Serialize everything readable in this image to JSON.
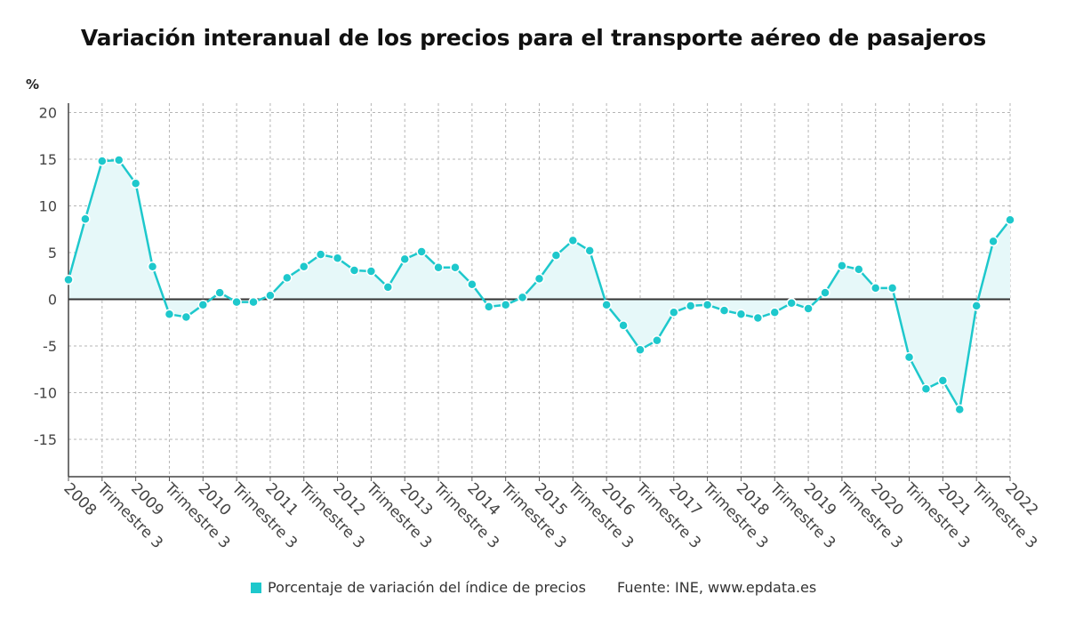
{
  "title": "Variación interanual de los precios para el transporte aéreo de pasajeros",
  "legend_label": "Porcentaje de variación del índice de precios",
  "source": "Fuente: INE, www.epdata.es",
  "colors": {
    "series": "#1ec8cc",
    "area": "#e6f8f9",
    "grid": "#b5b5b5",
    "zero_line": "#333333",
    "axis_text": "#444444"
  },
  "chart_data": {
    "type": "line",
    "title": "Variación interanual de los precios para el transporte aéreo de pasajeros",
    "ylabel": "%",
    "xlabel": "",
    "ylim": [
      -19,
      21
    ],
    "yticks": [
      20,
      15,
      10,
      5,
      0,
      -5,
      -10,
      -15
    ],
    "x_tick_labels": [
      "2008",
      "Trimestre 3",
      "2009",
      "Trimestre 3",
      "2010",
      "Trimestre 3",
      "2011",
      "Trimestre 3",
      "2012",
      "Trimestre 3",
      "2013",
      "Trimestre 3",
      "2014",
      "Trimestre 3",
      "2015",
      "Trimestre 3",
      "2016",
      "Trimestre 3",
      "2017",
      "Trimestre 3",
      "2018",
      "Trimestre 3",
      "2019",
      "Trimestre 3",
      "2020",
      "Trimestre 3",
      "2021",
      "Trimestre 3",
      "2022"
    ],
    "grid": true,
    "legend_position": "bottom",
    "series": [
      {
        "name": "Porcentaje de variación del índice de precios",
        "values": [
          2.1,
          8.6,
          14.8,
          14.9,
          12.4,
          3.5,
          -1.6,
          -1.9,
          -0.6,
          0.7,
          -0.3,
          -0.3,
          0.4,
          2.3,
          3.5,
          4.8,
          4.4,
          3.1,
          3.0,
          1.3,
          4.3,
          5.1,
          3.4,
          3.4,
          1.6,
          -0.8,
          -0.6,
          0.2,
          2.2,
          4.7,
          6.3,
          5.2,
          -0.6,
          -2.8,
          -5.4,
          -4.4,
          -1.4,
          -0.7,
          -0.6,
          -1.2,
          -1.6,
          -2.0,
          -1.4,
          -0.4,
          -1.0,
          0.7,
          3.6,
          3.2,
          1.2,
          1.2,
          -6.2,
          -9.6,
          -8.7,
          -11.8,
          -0.7,
          6.2,
          8.5
        ]
      }
    ]
  }
}
